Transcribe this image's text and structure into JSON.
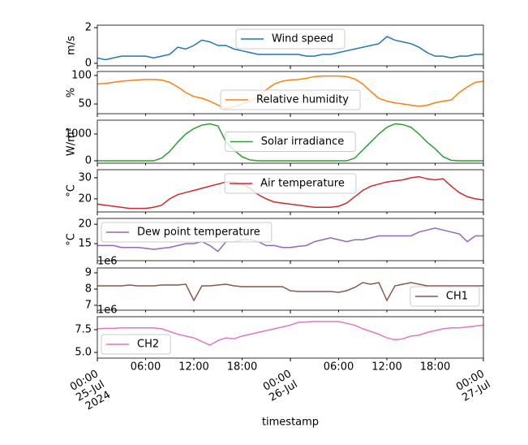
{
  "chart_data": {
    "type": "line",
    "xlabel": "timestamp",
    "xlim": [
      "2024-07-25 00:00",
      "2024-07-27 00:00"
    ],
    "xticks": [
      {
        "value": "2024-07-25 00:00",
        "label": [
          "00:00",
          "25-Jul",
          "2024"
        ]
      },
      {
        "value": "2024-07-26 00:00",
        "label": [
          "00:00",
          "26-Jul"
        ]
      },
      {
        "value": "2024-07-27 00:00",
        "label": [
          "00:00",
          "27-Jul"
        ]
      }
    ],
    "xticks_minor": [
      {
        "value": "2024-07-25 06:00",
        "label": "06:00"
      },
      {
        "value": "2024-07-25 12:00",
        "label": "12:00"
      },
      {
        "value": "2024-07-25 18:00",
        "label": "18:00"
      },
      {
        "value": "2024-07-26 06:00",
        "label": "06:00"
      },
      {
        "value": "2024-07-26 12:00",
        "label": "12:00"
      },
      {
        "value": "2024-07-26 18:00",
        "label": "18:00"
      }
    ],
    "x": [
      "2024-07-25 00:00",
      "2024-07-25 01:00",
      "2024-07-25 02:00",
      "2024-07-25 03:00",
      "2024-07-25 04:00",
      "2024-07-25 05:00",
      "2024-07-25 06:00",
      "2024-07-25 07:00",
      "2024-07-25 08:00",
      "2024-07-25 09:00",
      "2024-07-25 10:00",
      "2024-07-25 11:00",
      "2024-07-25 12:00",
      "2024-07-25 13:00",
      "2024-07-25 14:00",
      "2024-07-25 15:00",
      "2024-07-25 16:00",
      "2024-07-25 17:00",
      "2024-07-25 18:00",
      "2024-07-25 19:00",
      "2024-07-25 20:00",
      "2024-07-25 21:00",
      "2024-07-25 22:00",
      "2024-07-25 23:00",
      "2024-07-26 00:00",
      "2024-07-26 01:00",
      "2024-07-26 02:00",
      "2024-07-26 03:00",
      "2024-07-26 04:00",
      "2024-07-26 05:00",
      "2024-07-26 06:00",
      "2024-07-26 07:00",
      "2024-07-26 08:00",
      "2024-07-26 09:00",
      "2024-07-26 10:00",
      "2024-07-26 11:00",
      "2024-07-26 12:00",
      "2024-07-26 13:00",
      "2024-07-26 14:00",
      "2024-07-26 15:00",
      "2024-07-26 16:00",
      "2024-07-26 17:00",
      "2024-07-26 18:00",
      "2024-07-26 19:00",
      "2024-07-26 20:00",
      "2024-07-26 21:00",
      "2024-07-26 22:00",
      "2024-07-26 23:00",
      "2024-07-27 00:00"
    ],
    "panels": [
      {
        "ylabel": "m/s",
        "ylim": [
          -0.14,
          2.14
        ],
        "yticks": [
          0,
          2
        ],
        "legend": "upper center",
        "series": [
          {
            "name": "Wind speed",
            "color": "#1f77b4",
            "values": [
              0.3,
              0.2,
              0.3,
              0.4,
              0.4,
              0.4,
              0.4,
              0.3,
              0.4,
              0.5,
              0.9,
              0.8,
              1.0,
              1.3,
              1.2,
              1.0,
              1.0,
              0.8,
              0.7,
              0.6,
              0.5,
              0.5,
              0.5,
              0.5,
              0.5,
              0.5,
              0.4,
              0.4,
              0.5,
              0.5,
              0.6,
              0.7,
              0.8,
              0.9,
              1.0,
              1.1,
              1.5,
              1.3,
              1.2,
              1.1,
              0.9,
              0.6,
              0.4,
              0.4,
              0.3,
              0.4,
              0.4,
              0.5,
              0.5
            ]
          }
        ]
      },
      {
        "ylabel": "%",
        "ylim": [
          33,
          107
        ],
        "yticks": [
          50,
          100
        ],
        "legend": "lower center",
        "series": [
          {
            "name": "Relative humidity",
            "color": "#ff7f0e",
            "values": [
              85,
              86,
              88,
              90,
              91,
              92,
              93,
              93,
              92,
              88,
              80,
              70,
              63,
              60,
              55,
              48,
              42,
              45,
              50,
              55,
              62,
              75,
              85,
              90,
              92,
              93,
              95,
              98,
              99,
              99,
              99,
              98,
              94,
              85,
              72,
              60,
              55,
              52,
              50,
              48,
              46,
              48,
              52,
              55,
              57,
              70,
              80,
              88,
              90
            ]
          }
        ]
      },
      {
        "ylabel": "W/m²",
        "ylim": [
          -90,
          1515
        ],
        "yticks": [
          0,
          1000
        ],
        "legend": "center",
        "series": [
          {
            "name": "Solar irradiance",
            "color": "#2ca02c",
            "values": [
              0,
              0,
              0,
              0,
              0,
              0,
              0,
              0,
              100,
              350,
              700,
              1000,
              1200,
              1330,
              1380,
              1300,
              700,
              400,
              150,
              30,
              0,
              0,
              0,
              0,
              0,
              0,
              0,
              0,
              0,
              0,
              0,
              0,
              100,
              400,
              700,
              1000,
              1250,
              1380,
              1350,
              1250,
              1000,
              700,
              450,
              150,
              20,
              0,
              0,
              0,
              0
            ]
          }
        ]
      },
      {
        "ylabel": "°C",
        "ylim": [
          13.8,
          33.8
        ],
        "yticks": [
          20,
          30
        ],
        "legend": "upper center",
        "series": [
          {
            "name": "Air temperature",
            "color": "#d62728",
            "values": [
              17.5,
              17,
              16.5,
              16,
              15.5,
              15.5,
              15.5,
              16,
              17,
              20,
              22,
              23,
              24,
              25,
              26,
              27,
              28,
              28,
              27,
              25,
              22,
              20,
              18.5,
              18,
              17.5,
              17,
              16.5,
              16,
              16,
              16,
              16.5,
              18,
              21,
              24,
              26,
              27,
              28,
              28.5,
              29,
              30,
              30.5,
              29.5,
              29,
              29.5,
              26,
              23,
              21,
              20,
              19.5
            ]
          }
        ]
      },
      {
        "ylabel": "°C",
        "ylim": [
          10.6,
          21.5
        ],
        "yticks": [
          15,
          20
        ],
        "legend": "upper left",
        "series": [
          {
            "name": "Dew point temperature",
            "color": "#9467bd",
            "values": [
              14.5,
              14.5,
              14.5,
              14,
              14,
              14,
              13.8,
              13.5,
              13.8,
              14,
              14.5,
              15,
              15,
              15.5,
              14.5,
              13,
              15.5,
              15.5,
              16,
              16,
              15.5,
              14.5,
              14.5,
              14,
              14,
              14.3,
              14.5,
              15.5,
              16,
              16.5,
              16,
              15.5,
              16,
              16,
              16.5,
              17,
              17,
              17,
              17,
              17,
              18,
              18.5,
              19,
              18.5,
              18,
              17.5,
              15.5,
              17,
              17
            ]
          }
        ]
      },
      {
        "ylim": [
          6700000,
          9300000
        ],
        "offset_text": "1e6",
        "legend": "lower right",
        "yticks": [
          {
            "value": 7000000,
            "label": "7"
          },
          {
            "value": 8000000,
            "label": "8"
          },
          {
            "value": 9000000,
            "label": "9"
          }
        ],
        "series": [
          {
            "name": "CH1",
            "color": "#8c564b",
            "values": [
              8200000,
              8200000,
              8200000,
              8200000,
              8250000,
              8200000,
              8200000,
              8200000,
              8250000,
              8250000,
              8250000,
              8300000,
              7300000,
              8200000,
              8200000,
              8250000,
              8300000,
              8200000,
              8150000,
              8150000,
              8150000,
              8150000,
              8150000,
              8150000,
              7900000,
              7850000,
              7850000,
              7850000,
              7850000,
              7850000,
              7800000,
              7900000,
              8100000,
              8400000,
              8300000,
              8400000,
              7300000,
              8200000,
              8300000,
              8400000,
              8300000,
              8200000,
              8200000,
              8200000,
              8200000,
              8200000,
              8200000,
              8200000,
              8200000
            ]
          }
        ]
      },
      {
        "ylim": [
          4375000,
          8930000
        ],
        "offset_text": "1e6",
        "legend": "lower left",
        "yticks": [
          {
            "value": 5000000,
            "label": "5.0"
          },
          {
            "value": 7500000,
            "label": "7.5"
          }
        ],
        "series": [
          {
            "name": "CH2",
            "color": "#e377c2",
            "values": [
              7600000,
              7650000,
              7650000,
              7700000,
              7700000,
              7700000,
              7700000,
              7700000,
              7600000,
              7300000,
              7000000,
              6800000,
              6600000,
              6200000,
              5800000,
              6300000,
              6600000,
              6500000,
              6800000,
              7000000,
              7200000,
              7400000,
              7600000,
              7800000,
              8000000,
              8300000,
              8350000,
              8400000,
              8400000,
              8400000,
              8400000,
              8200000,
              8000000,
              7600000,
              7300000,
              7000000,
              6600000,
              6400000,
              6500000,
              6800000,
              6900000,
              7200000,
              7400000,
              7600000,
              7700000,
              7700000,
              7800000,
              7900000,
              8000000
            ]
          }
        ]
      }
    ]
  }
}
